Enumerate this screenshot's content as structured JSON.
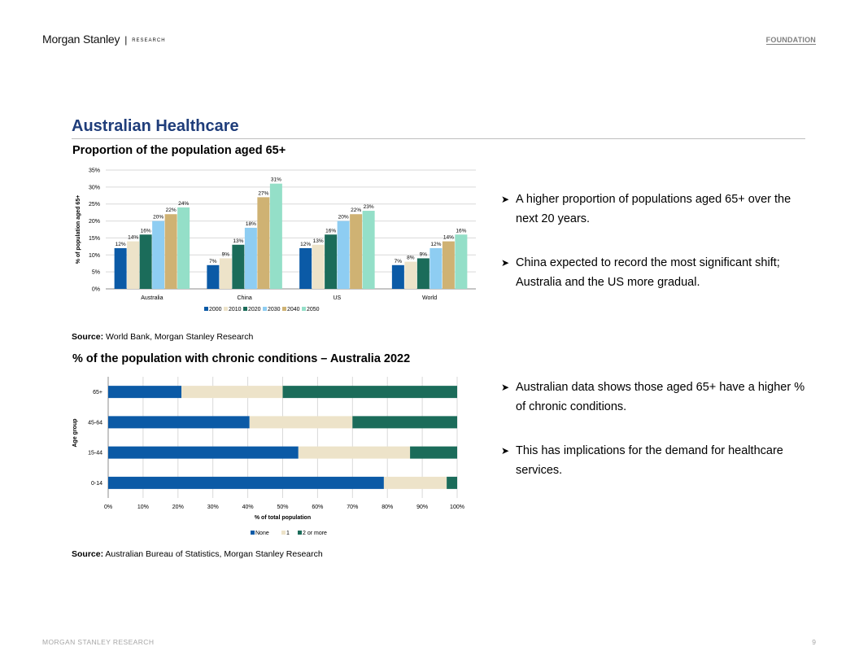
{
  "header": {
    "brand": "Morgan Stanley",
    "separator": "|",
    "brand_sub": "RESEARCH",
    "section_tag": "FOUNDATION"
  },
  "page_title": "Australian Healthcare",
  "chart1": {
    "title": "Proportion of the population aged 65+",
    "source_label": "Source:",
    "source_text": " World Bank, Morgan Stanley Research"
  },
  "chart2": {
    "title": "% of the population with chronic conditions – Australia 2022",
    "source_label": "Source:",
    "source_text": " Australian Bureau of Statistics, Morgan Stanley Research"
  },
  "bullets_top": [
    "A higher proportion of populations aged 65+ over the next 20 years.",
    "China expected to record the most significant shift; Australia and the US more gradual."
  ],
  "bullets_bottom": [
    "Australian data shows those aged 65+ have a higher % of chronic conditions.",
    "This has implications for the demand for healthcare services."
  ],
  "footer": {
    "left": "MORGAN STANLEY RESEARCH",
    "page": "9"
  },
  "chart_data": [
    {
      "type": "bar",
      "ylabel": "% of population aged 65+",
      "xlabel": "",
      "ylim": [
        0,
        35
      ],
      "yticks": [
        "0%",
        "5%",
        "10%",
        "15%",
        "20%",
        "25%",
        "30%",
        "35%"
      ],
      "categories": [
        "Australia",
        "China",
        "US",
        "World"
      ],
      "series": [
        {
          "name": "2000",
          "color": "#0b5aa6",
          "values": [
            12,
            7,
            12,
            7
          ],
          "labels": [
            "12%",
            "7%",
            "12%",
            "7%"
          ]
        },
        {
          "name": "2010",
          "color": "#ede3c9",
          "values": [
            14,
            9,
            13,
            8
          ],
          "labels": [
            "14%",
            "9%",
            "13%",
            "8%"
          ]
        },
        {
          "name": "2020",
          "color": "#1b6c5a",
          "values": [
            16,
            13,
            16,
            9
          ],
          "labels": [
            "16%",
            "13%",
            "16%",
            "9%"
          ]
        },
        {
          "name": "2030",
          "color": "#8ecdf2",
          "values": [
            20,
            18,
            20,
            12
          ],
          "labels": [
            "20%",
            "18%",
            "20%",
            "12%"
          ]
        },
        {
          "name": "2040",
          "color": "#cfb273",
          "values": [
            22,
            27,
            22,
            14
          ],
          "labels": [
            "22%",
            "27%",
            "22%",
            "14%"
          ]
        },
        {
          "name": "2050",
          "color": "#94dfc8",
          "values": [
            24,
            31,
            23,
            16
          ],
          "labels": [
            "24%",
            "31%",
            "23%",
            "16%"
          ]
        }
      ],
      "grid": true,
      "legend_position": "bottom"
    },
    {
      "type": "bar",
      "orientation": "horizontal",
      "stacked": true,
      "ylabel": "Age group",
      "xlabel": "% of total population",
      "xlim": [
        0,
        100
      ],
      "xticks": [
        "0%",
        "10%",
        "20%",
        "30%",
        "40%",
        "50%",
        "60%",
        "70%",
        "80%",
        "90%",
        "100%"
      ],
      "categories": [
        "65+",
        "45-64",
        "15-44",
        "0-14"
      ],
      "series": [
        {
          "name": "None",
          "color": "#0b5aa6",
          "values": [
            21,
            40.5,
            54.5,
            79
          ]
        },
        {
          "name": "1",
          "color": "#ede3c9",
          "values": [
            29,
            29.5,
            32,
            18
          ]
        },
        {
          "name": "2 or more",
          "color": "#1b6c5a",
          "values": [
            50,
            30,
            13.5,
            3
          ]
        }
      ],
      "grid": true,
      "legend_position": "bottom"
    }
  ]
}
